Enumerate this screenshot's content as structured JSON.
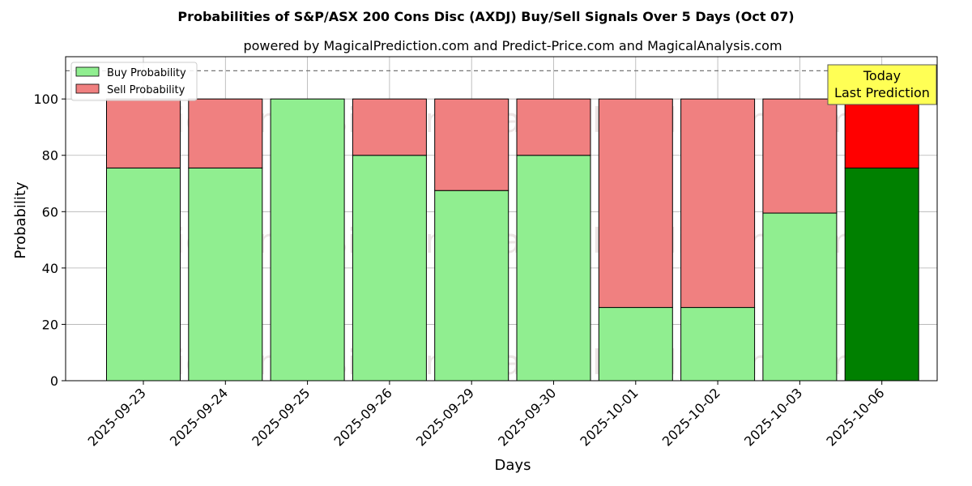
{
  "chart_data": {
    "type": "bar",
    "stacked": true,
    "title": "Probabilities of S&P/ASX 200 Cons Disc (AXDJ) Buy/Sell Signals Over 5 Days (Oct 07)",
    "subtitle": "powered by MagicalPrediction.com and Predict-Price.com and MagicalAnalysis.com",
    "xlabel": "Days",
    "ylabel": "Probability",
    "ylim": [
      0,
      115
    ],
    "yticks": [
      0,
      20,
      40,
      60,
      80,
      100
    ],
    "reference_line": 110,
    "grid": true,
    "legend_position": "top-left",
    "categories": [
      "2025-09-23",
      "2025-09-24",
      "2025-09-25",
      "2025-09-26",
      "2025-09-29",
      "2025-09-30",
      "2025-10-01",
      "2025-10-02",
      "2025-10-03",
      "2025-10-06"
    ],
    "series": [
      {
        "name": "Buy Probability",
        "values": [
          75.5,
          75.5,
          100,
          80,
          67.5,
          80,
          26,
          26,
          59.5,
          75.5
        ],
        "color": "#90ee90",
        "highlight_color": "#008000"
      },
      {
        "name": "Sell Probability",
        "values": [
          24.5,
          24.5,
          0,
          20,
          32.5,
          20,
          74,
          74,
          40.5,
          24.5
        ],
        "color": "#f08080",
        "highlight_color": "#ff0000"
      }
    ],
    "highlight_index": 9,
    "annotation": {
      "lines": [
        "Today",
        "Last Prediction"
      ],
      "bg": "#ffff55"
    },
    "watermarks": [
      "MagicalAnalysis.com",
      "MagicalPrediction.com"
    ]
  }
}
